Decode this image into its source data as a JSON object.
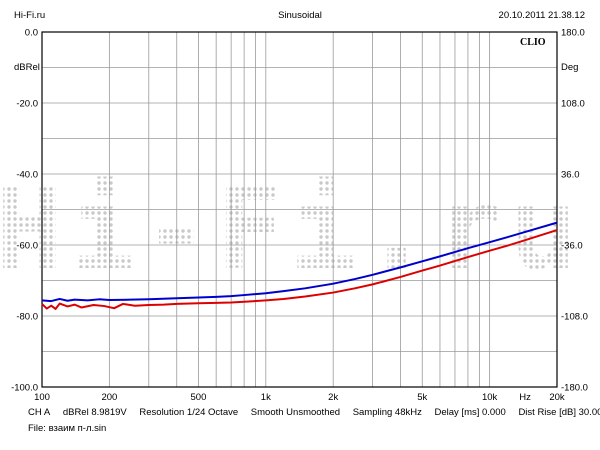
{
  "header": {
    "left": "Hi-Fi.ru",
    "center": "Sinusoidal",
    "right": "20.10.2011 21.38.12"
  },
  "brand": "CLIO",
  "watermark": "Hi-Fi.ru",
  "chart_data": {
    "type": "line",
    "x_scale": "log",
    "xlim": [
      100,
      20000
    ],
    "ylim_left": [
      -100,
      0
    ],
    "ylim_right": [
      -180,
      180
    ],
    "ylabel_left": "dBRel",
    "ylabel_right": "Deg",
    "xunit_label": "Hz",
    "left_ticks": [
      "0.0",
      "-20.0",
      "-40.0",
      "-60.0",
      "-80.0",
      "-100.0"
    ],
    "right_ticks": [
      "180.0",
      "108.0",
      "36.0",
      "-36.0",
      "-108.0",
      "-180.0"
    ],
    "x_ticks": [
      {
        "v": 100,
        "label": "100"
      },
      {
        "v": 200,
        "label": "200"
      },
      {
        "v": 500,
        "label": "500"
      },
      {
        "v": 1000,
        "label": "1k"
      },
      {
        "v": 2000,
        "label": "2k"
      },
      {
        "v": 5000,
        "label": "5k"
      },
      {
        "v": 10000,
        "label": "10k"
      },
      {
        "v": 20000,
        "label": "20k"
      }
    ],
    "grid": true,
    "series": [
      {
        "color": "#0000cc",
        "points": [
          [
            100,
            -75.6
          ],
          [
            110,
            -75.8
          ],
          [
            120,
            -75.2
          ],
          [
            130,
            -75.7
          ],
          [
            140,
            -75.4
          ],
          [
            160,
            -75.6
          ],
          [
            180,
            -75.3
          ],
          [
            200,
            -75.5
          ],
          [
            250,
            -75.4
          ],
          [
            300,
            -75.3
          ],
          [
            400,
            -75.0
          ],
          [
            500,
            -74.8
          ],
          [
            600,
            -74.6
          ],
          [
            700,
            -74.4
          ],
          [
            800,
            -74.1
          ],
          [
            1000,
            -73.6
          ],
          [
            1200,
            -73.0
          ],
          [
            1500,
            -72.2
          ],
          [
            2000,
            -70.9
          ],
          [
            2500,
            -69.6
          ],
          [
            3000,
            -68.4
          ],
          [
            4000,
            -66.3
          ],
          [
            5000,
            -64.6
          ],
          [
            6000,
            -63.2
          ],
          [
            8000,
            -60.9
          ],
          [
            10000,
            -59.2
          ],
          [
            12000,
            -57.8
          ],
          [
            15000,
            -56.0
          ],
          [
            20000,
            -53.7
          ]
        ]
      },
      {
        "color": "#dd0000",
        "points": [
          [
            100,
            -76.6
          ],
          [
            105,
            -77.9
          ],
          [
            110,
            -77.1
          ],
          [
            115,
            -78.0
          ],
          [
            120,
            -76.5
          ],
          [
            130,
            -77.3
          ],
          [
            140,
            -76.8
          ],
          [
            150,
            -77.6
          ],
          [
            170,
            -76.9
          ],
          [
            190,
            -77.2
          ],
          [
            210,
            -77.8
          ],
          [
            230,
            -76.6
          ],
          [
            260,
            -77.1
          ],
          [
            300,
            -76.9
          ],
          [
            350,
            -76.8
          ],
          [
            400,
            -76.6
          ],
          [
            500,
            -76.4
          ],
          [
            600,
            -76.3
          ],
          [
            700,
            -76.2
          ],
          [
            800,
            -76.0
          ],
          [
            1000,
            -75.6
          ],
          [
            1200,
            -75.2
          ],
          [
            1500,
            -74.5
          ],
          [
            2000,
            -73.4
          ],
          [
            2500,
            -72.2
          ],
          [
            3000,
            -71.1
          ],
          [
            4000,
            -69.0
          ],
          [
            5000,
            -67.2
          ],
          [
            6000,
            -65.8
          ],
          [
            8000,
            -63.4
          ],
          [
            10000,
            -61.6
          ],
          [
            12000,
            -60.2
          ],
          [
            15000,
            -58.3
          ],
          [
            20000,
            -55.8
          ]
        ]
      }
    ]
  },
  "footer": {
    "channel": "CH A",
    "level": "dBRel 8.9819V",
    "resolution": "Resolution 1/24 Octave",
    "smooth": "Smooth Unsmoothed",
    "sampling": "Sampling 48kHz",
    "delay": "Delay [ms] 0.000",
    "dist_rise": "Dist Rise [dB] 30.00",
    "file": "File: взаим п-л.sin"
  }
}
